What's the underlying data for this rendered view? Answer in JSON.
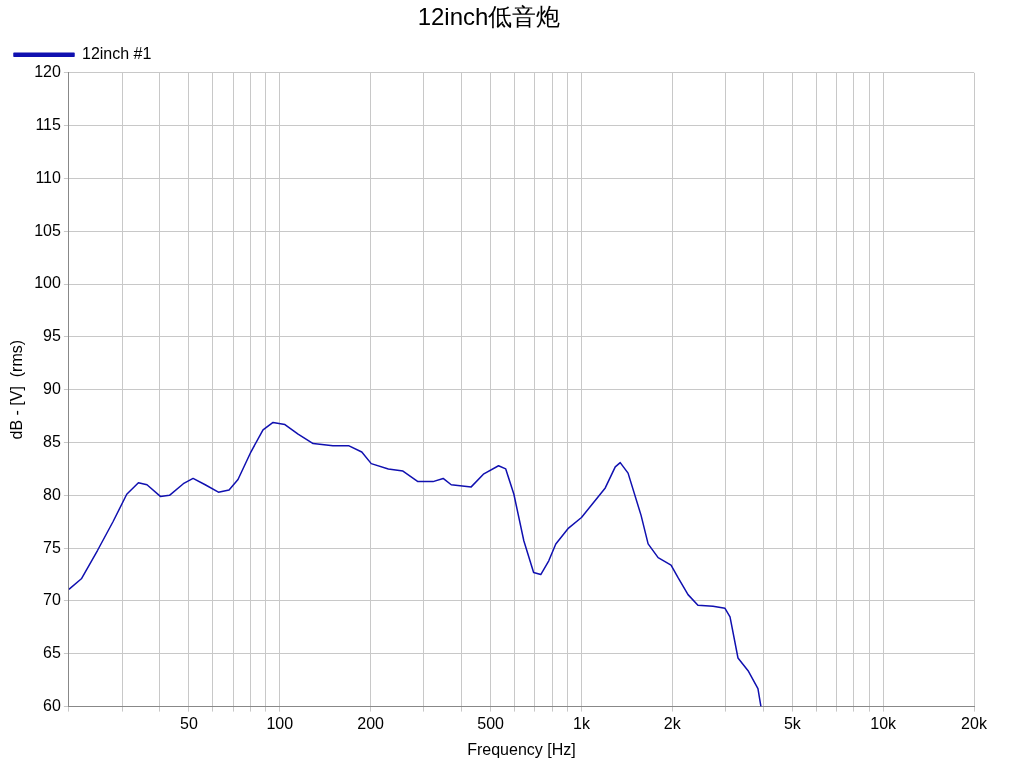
{
  "chart_data": {
    "type": "line",
    "title": "12inch低音炮",
    "xlabel": "Frequency [Hz]",
    "ylabel": "dB - [V]  (rms)",
    "log": "x",
    "grid": true,
    "legend": "top left",
    "marker": "none",
    "line_style": "solid",
    "xlim": [
      20,
      20000
    ],
    "ylim": [
      60,
      120
    ],
    "xticks": [
      {
        "value": 20,
        "label": null
      },
      {
        "value": 30,
        "label": null
      },
      {
        "value": 40,
        "label": null
      },
      {
        "value": 50,
        "label": "50"
      },
      {
        "value": 60,
        "label": null
      },
      {
        "value": 70,
        "label": null
      },
      {
        "value": 80,
        "label": null
      },
      {
        "value": 90,
        "label": null
      },
      {
        "value": 100,
        "label": "100"
      },
      {
        "value": 200,
        "label": "200"
      },
      {
        "value": 300,
        "label": null
      },
      {
        "value": 400,
        "label": null
      },
      {
        "value": 500,
        "label": "500"
      },
      {
        "value": 600,
        "label": null
      },
      {
        "value": 700,
        "label": null
      },
      {
        "value": 800,
        "label": null
      },
      {
        "value": 900,
        "label": null
      },
      {
        "value": 1000,
        "label": "1k"
      },
      {
        "value": 2000,
        "label": "2k"
      },
      {
        "value": 3000,
        "label": null
      },
      {
        "value": 4000,
        "label": null
      },
      {
        "value": 5000,
        "label": "5k"
      },
      {
        "value": 6000,
        "label": null
      },
      {
        "value": 7000,
        "label": null
      },
      {
        "value": 8000,
        "label": null
      },
      {
        "value": 9000,
        "label": null
      },
      {
        "value": 10000,
        "label": "10k"
      },
      {
        "value": 20000,
        "label": "20k"
      }
    ],
    "yticks": [
      60,
      65,
      70,
      75,
      80,
      85,
      90,
      95,
      100,
      105,
      110,
      115,
      120
    ],
    "series": [
      {
        "name": "12inch #1",
        "color": "#1010b0",
        "x": [
          20,
          22,
          24.9,
          28,
          31.1,
          34,
          36.3,
          40.2,
          43.1,
          47.9,
          51.6,
          56.6,
          62.6,
          67.9,
          72.7,
          80.2,
          88,
          95,
          104,
          115,
          129,
          150,
          169,
          187,
          201,
          229,
          256,
          287,
          322,
          348,
          370,
          431,
          473,
          531,
          561,
          597,
          644,
          694,
          733,
          779,
          822,
          906,
          1000,
          1095,
          1199,
          1294,
          1344,
          1427,
          1576,
          1663,
          1795,
          1981,
          2090,
          2255,
          2432,
          2729,
          2990,
          3107,
          3302,
          3566,
          3845,
          3934
        ],
        "values": [
          71.1,
          72.1,
          74.8,
          77.5,
          80.1,
          81.2,
          81.0,
          79.9,
          80.0,
          81.1,
          81.6,
          81.0,
          80.3,
          80.5,
          81.5,
          84.1,
          86.2,
          86.9,
          86.7,
          85.8,
          84.9,
          84.7,
          84.7,
          84.1,
          83.0,
          82.5,
          82.3,
          81.3,
          81.3,
          81.6,
          81.0,
          80.8,
          82.0,
          82.8,
          82.5,
          80.1,
          75.7,
          72.7,
          72.5,
          73.8,
          75.4,
          76.9,
          77.9,
          79.3,
          80.7,
          82.7,
          83.1,
          82.1,
          78.1,
          75.4,
          74.1,
          73.4,
          72.2,
          70.6,
          69.6,
          69.5,
          69.3,
          68.5,
          64.6,
          63.4,
          61.7,
          60.0
        ]
      }
    ]
  }
}
